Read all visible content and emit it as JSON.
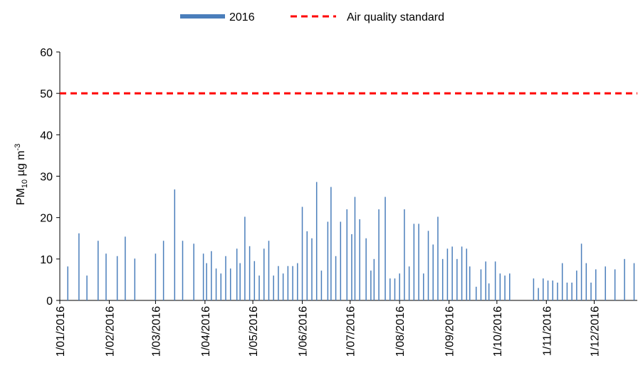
{
  "chart_data": {
    "type": "bar",
    "y_label_parts": [
      "PM",
      "10",
      " µg m",
      "-3"
    ],
    "series": [
      {
        "name": "2016",
        "color": "#4a7ebb",
        "x": [
          "2016-01-06",
          "2016-01-13",
          "2016-01-18",
          "2016-01-25",
          "2016-01-30",
          "2016-02-06",
          "2016-02-11",
          "2016-02-17",
          "2016-03-01",
          "2016-03-06",
          "2016-03-13",
          "2016-03-18",
          "2016-03-25",
          "2016-03-31",
          "2016-04-02",
          "2016-04-05",
          "2016-04-08",
          "2016-04-11",
          "2016-04-14",
          "2016-04-17",
          "2016-04-21",
          "2016-04-23",
          "2016-04-26",
          "2016-04-29",
          "2016-05-02",
          "2016-05-05",
          "2016-05-08",
          "2016-05-11",
          "2016-05-14",
          "2016-05-17",
          "2016-05-20",
          "2016-05-23",
          "2016-05-26",
          "2016-05-29",
          "2016-06-01",
          "2016-06-04",
          "2016-06-07",
          "2016-06-10",
          "2016-06-13",
          "2016-06-17",
          "2016-06-19",
          "2016-06-22",
          "2016-06-25",
          "2016-06-29",
          "2016-07-02",
          "2016-07-04",
          "2016-07-07",
          "2016-07-11",
          "2016-07-14",
          "2016-07-16",
          "2016-07-19",
          "2016-07-23",
          "2016-07-26",
          "2016-07-29",
          "2016-08-01",
          "2016-08-04",
          "2016-08-07",
          "2016-08-10",
          "2016-08-13",
          "2016-08-16",
          "2016-08-19",
          "2016-08-22",
          "2016-08-25",
          "2016-08-28",
          "2016-08-31",
          "2016-09-03",
          "2016-09-06",
          "2016-09-09",
          "2016-09-12",
          "2016-09-14",
          "2016-09-18",
          "2016-09-21",
          "2016-09-24",
          "2016-09-26",
          "2016-09-30",
          "2016-10-03",
          "2016-10-06",
          "2016-10-09",
          "2016-10-24",
          "2016-10-27",
          "2016-10-30",
          "2016-11-02",
          "2016-11-05",
          "2016-11-08",
          "2016-11-11",
          "2016-11-14",
          "2016-11-17",
          "2016-11-20",
          "2016-11-23",
          "2016-11-26",
          "2016-11-29",
          "2016-12-02",
          "2016-12-08",
          "2016-12-14",
          "2016-12-20",
          "2016-12-26"
        ],
        "values": [
          8.2,
          16.2,
          6,
          14.4,
          11.3,
          10.7,
          15.4,
          10.1,
          11.3,
          14.4,
          26.8,
          14.4,
          13.7,
          11.3,
          9,
          11.9,
          7.7,
          6.5,
          10.7,
          7.7,
          12.5,
          9,
          20.2,
          13.1,
          9.5,
          6,
          12.5,
          14.4,
          6,
          8.3,
          6.5,
          8.3,
          8.3,
          9,
          22.6,
          16.7,
          15,
          28.6,
          7.2,
          19,
          27.4,
          10.7,
          19,
          22,
          16,
          25,
          19.6,
          15,
          7.2,
          10,
          22,
          25,
          5.3,
          5.3,
          6.5,
          22,
          8.2,
          18.5,
          18.5,
          6.5,
          16.8,
          13.5,
          20.2,
          10,
          12.5,
          13,
          10,
          13,
          12.5,
          8.2,
          3.3,
          7.5,
          9.4,
          4.1,
          9.4,
          6.5,
          6,
          6.5,
          5.3,
          3,
          5.3,
          4.8,
          4.8,
          4.3,
          9,
          4.3,
          4.3,
          7.2,
          13.7,
          9,
          4.3,
          7.5,
          8.2,
          7.5,
          10,
          9
        ]
      }
    ],
    "reference_line": {
      "name": "Air quality standard",
      "value": 50,
      "color": "#ff0000"
    },
    "xlim": [
      "2016-01-01",
      "2016-12-28"
    ],
    "xticks": [
      {
        "value": "2016-01-01",
        "label": "1/01/2016"
      },
      {
        "value": "2016-02-01",
        "label": "1/02/2016"
      },
      {
        "value": "2016-03-01",
        "label": "1/03/2016"
      },
      {
        "value": "2016-04-01",
        "label": "1/04/2016"
      },
      {
        "value": "2016-05-01",
        "label": "1/05/2016"
      },
      {
        "value": "2016-06-01",
        "label": "1/06/2016"
      },
      {
        "value": "2016-07-01",
        "label": "1/07/2016"
      },
      {
        "value": "2016-08-01",
        "label": "1/08/2016"
      },
      {
        "value": "2016-09-01",
        "label": "1/09/2016"
      },
      {
        "value": "2016-10-01",
        "label": "1/10/2016"
      },
      {
        "value": "2016-11-01",
        "label": "1/11/2016"
      },
      {
        "value": "2016-12-01",
        "label": "1/12/2016"
      }
    ],
    "ylim": [
      0,
      60
    ],
    "yticks": [
      0,
      10,
      20,
      30,
      40,
      50,
      60
    ],
    "legend": "top"
  }
}
